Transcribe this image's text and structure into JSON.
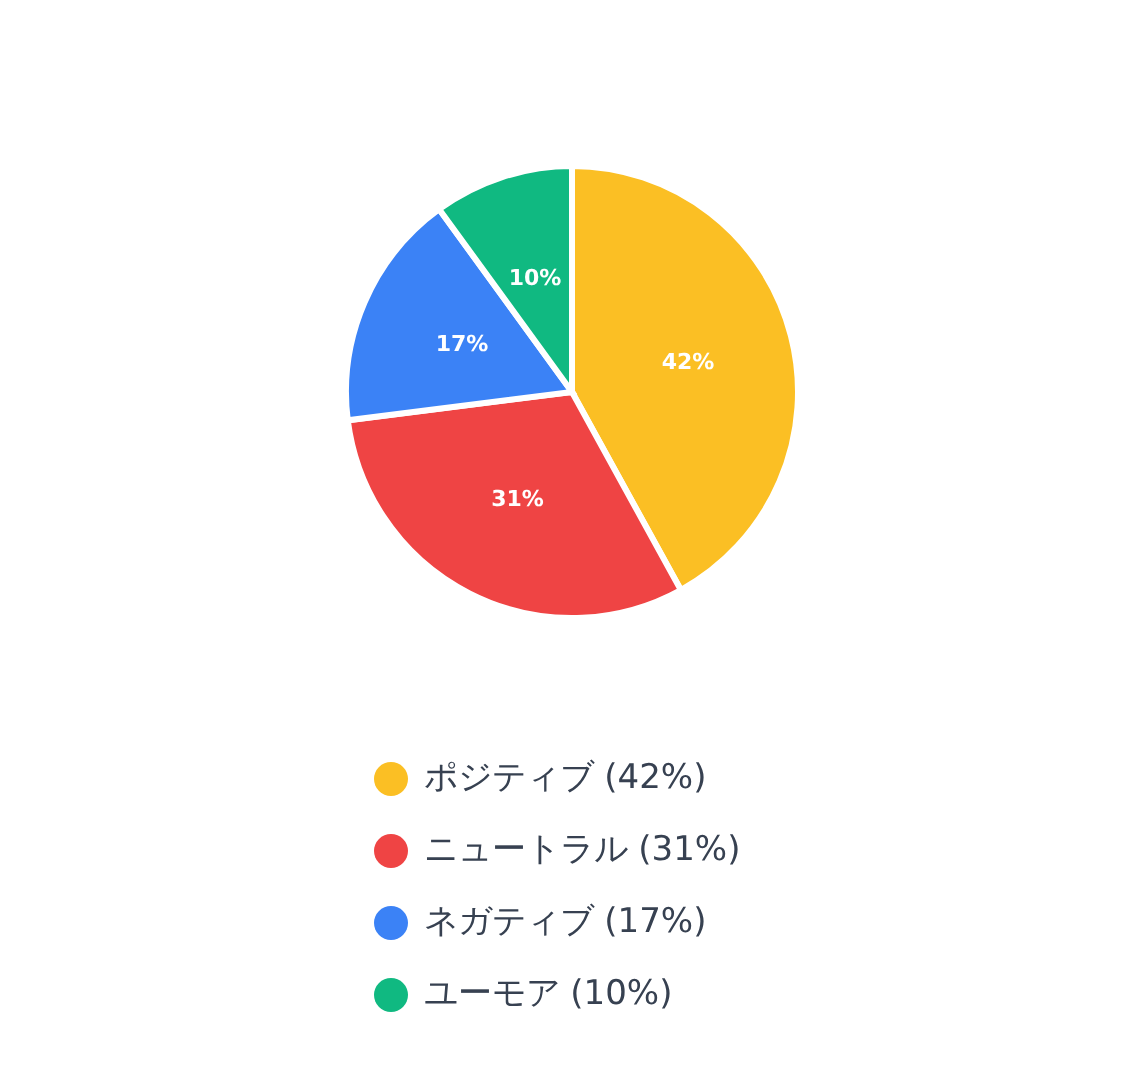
{
  "chart_data": {
    "type": "pie",
    "categories": [
      "ポジティブ (42%)",
      "ニュートラル (31%)",
      "ネガティブ (17%)",
      "ユーモア (10%)"
    ],
    "values": [
      42,
      31,
      17,
      10
    ],
    "colors": [
      "#fbbf24",
      "#ef4444",
      "#3b82f6",
      "#10b981"
    ],
    "value_labels": [
      "42%",
      "31%",
      "17%",
      "10%"
    ],
    "legend": "bottom"
  }
}
